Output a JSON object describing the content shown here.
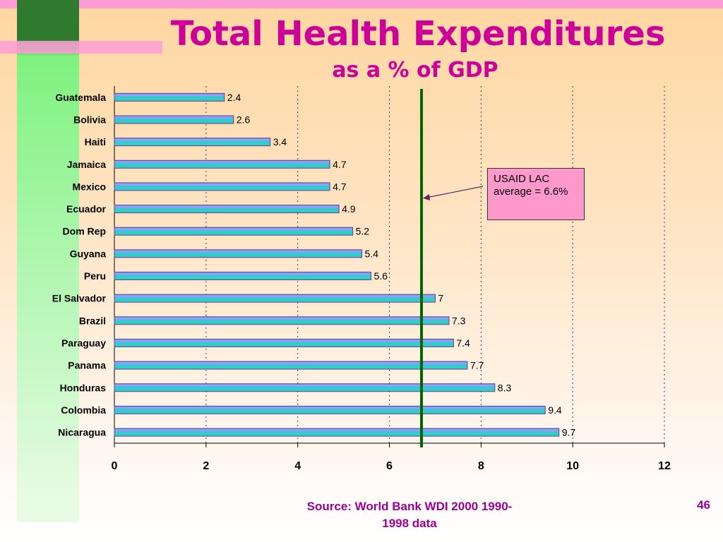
{
  "slide": {
    "title": "Total Health Expenditures",
    "subtitle": "as a % of GDP",
    "source": "Source:  World Bank WDI 2000 1990-1998 data",
    "page_number": "46",
    "callout_text": "USAID LAC average = 6.6%"
  },
  "colors": {
    "title": "#cc0099",
    "bar_fill": "#33cccc",
    "bar_top": "#9999ff",
    "average_line": "#006600",
    "callout_bg": "#ff99cc"
  },
  "chart_data": {
    "type": "bar",
    "orientation": "horizontal",
    "title": "Total Health Expenditures",
    "subtitle": "as a % of GDP",
    "xlabel": "",
    "ylabel": "",
    "xlim": [
      0,
      12
    ],
    "xticks": [
      0,
      2,
      4,
      6,
      8,
      10,
      12
    ],
    "grid": "vertical dotted",
    "categories": [
      "Guatemala",
      "Bolivia",
      "Haiti",
      "Jamaica",
      "Mexico",
      "Ecuador",
      "Dom Rep",
      "Guyana",
      "Peru",
      "El Salvador",
      "Brazil",
      "Paraguay",
      "Panama",
      "Honduras",
      "Colombia",
      "Nicaragua"
    ],
    "values": [
      2.4,
      2.6,
      3.4,
      4.7,
      4.7,
      4.9,
      5.2,
      5.4,
      5.6,
      7,
      7.3,
      7.4,
      7.7,
      8.3,
      9.4,
      9.7
    ],
    "average_line": {
      "value": 6.6,
      "label": "USAID LAC average = 6.6%"
    }
  }
}
